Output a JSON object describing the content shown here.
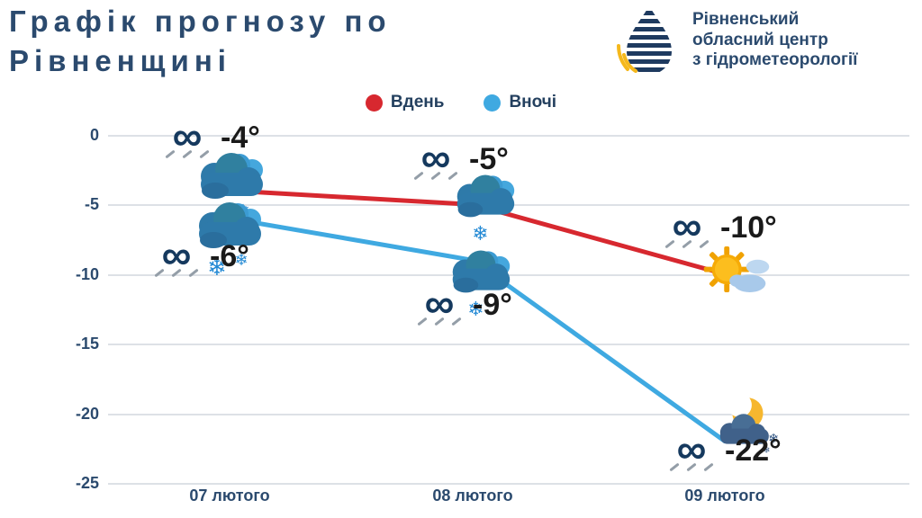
{
  "header": {
    "title_line1": "Графік прогнозу по",
    "title_line2": "Рівненщині",
    "org_line1": "Рівненський",
    "org_line2": "обласний центр",
    "org_line3": "з гідрометеорології"
  },
  "icons": {
    "wind_glyph": "∞",
    "snowflake_glyph": "❄",
    "wind_icon_meaning": "drifting-snow"
  },
  "colors": {
    "navy_text": "#2b4a6e",
    "temperature_text": "#1a1a1a",
    "gridline": "#dde1e6",
    "day_line": "#d7282f",
    "night_line": "#3fa9e1"
  },
  "chart_data": {
    "type": "line",
    "title": "Графік прогнозу по Рівненщині",
    "categories": [
      "07 лютого",
      "08 лютого",
      "09 лютого"
    ],
    "series": [
      {
        "name": "Вдень",
        "color": "#d7282f",
        "values": [
          -4,
          -5,
          -10
        ],
        "labels": [
          "-4°",
          "-5°",
          "-10°"
        ],
        "icons": [
          "snow-cloud",
          "snow-cloud",
          "sun-with-clouds"
        ]
      },
      {
        "name": "Вночі",
        "color": "#3fa9e1",
        "values": [
          -6,
          -9,
          -22
        ],
        "labels": [
          "-6°",
          "-9°",
          "-22°"
        ],
        "icons": [
          "snow-cloud",
          "snow-cloud",
          "moon-cloud-snow"
        ]
      }
    ],
    "ylim": [
      -25,
      0
    ],
    "yticks": [
      0,
      -5,
      -10,
      -15,
      -20,
      -25
    ],
    "grid": "horizontal",
    "legend_position": "top-center"
  }
}
